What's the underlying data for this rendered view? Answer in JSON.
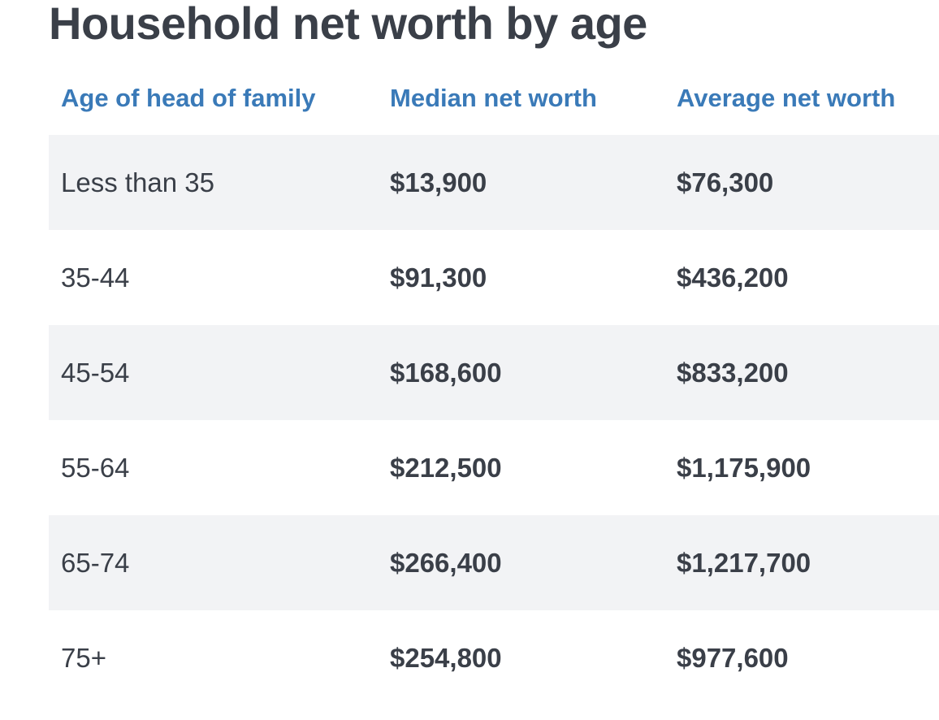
{
  "title": "Household net worth by age",
  "colors": {
    "title": "#3a3f48",
    "header": "#3a7ab8",
    "text": "#3a3f48",
    "stripe": "#f2f3f5"
  },
  "chart_data": {
    "type": "table",
    "title": "Household net worth by age",
    "columns": [
      "Age of head of family",
      "Median net worth",
      "Average net worth"
    ],
    "rows": [
      [
        "Less than 35",
        "$13,900",
        "$76,300"
      ],
      [
        "35-44",
        "$91,300",
        "$436,200"
      ],
      [
        "45-54",
        "$168,600",
        "$833,200"
      ],
      [
        "55-64",
        "$212,500",
        "$1,175,900"
      ],
      [
        "65-74",
        "$266,400",
        "$1,217,700"
      ],
      [
        "75+",
        "$254,800",
        "$977,600"
      ]
    ]
  }
}
